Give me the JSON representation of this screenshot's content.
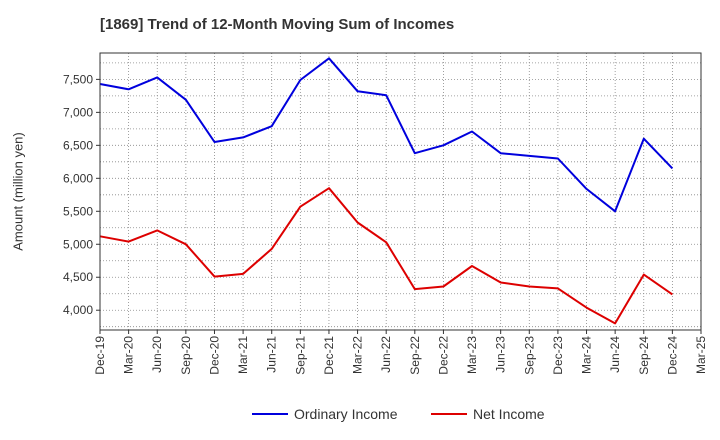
{
  "chart_data": {
    "type": "line",
    "title": "[1869]  Trend of 12-Month Moving Sum of Incomes",
    "xlabel": "",
    "ylabel": "Amount (million yen)",
    "categories": [
      "Dec-19",
      "Mar-20",
      "Jun-20",
      "Sep-20",
      "Dec-20",
      "Mar-21",
      "Jun-21",
      "Sep-21",
      "Dec-21",
      "Mar-22",
      "Jun-22",
      "Sep-22",
      "Dec-22",
      "Mar-23",
      "Jun-23",
      "Sep-23",
      "Dec-23",
      "Mar-24",
      "Jun-24",
      "Sep-24",
      "Dec-24",
      "Mar-25"
    ],
    "ylim": [
      3700,
      7900
    ],
    "yticks": [
      4000,
      4500,
      5000,
      5500,
      6000,
      6500,
      7000,
      7500
    ],
    "ytick_labels": [
      "4,000",
      "4,500",
      "5,000",
      "5,500",
      "6,000",
      "6,500",
      "7,000",
      "7,500"
    ],
    "grid": true,
    "legend_position": "bottom-center",
    "series": [
      {
        "name": "Ordinary Income",
        "color": "#0000dd",
        "values": [
          7430,
          7350,
          7530,
          7190,
          6550,
          6620,
          6790,
          7490,
          7820,
          7320,
          7260,
          6380,
          6500,
          6710,
          6380,
          6340,
          6300,
          5840,
          5500,
          6600,
          6150,
          null
        ]
      },
      {
        "name": "Net Income",
        "color": "#dd0000",
        "values": [
          5120,
          5040,
          5210,
          5000,
          4510,
          4550,
          4930,
          5570,
          5850,
          5330,
          5030,
          4320,
          4360,
          4670,
          4420,
          4360,
          4330,
          4040,
          3800,
          4540,
          4240,
          null
        ]
      }
    ]
  }
}
